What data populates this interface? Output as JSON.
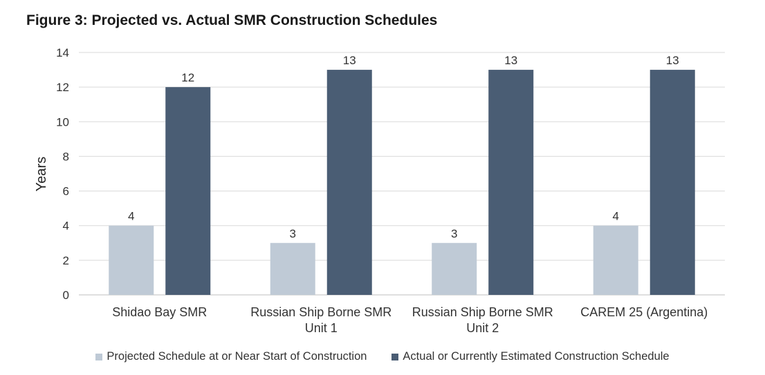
{
  "title": "Figure 3: Projected vs. Actual SMR Construction Schedules",
  "chart_data": {
    "type": "bar",
    "title": "Figure 3: Projected vs. Actual SMR Construction Schedules",
    "categories": [
      [
        "Shidao Bay SMR"
      ],
      [
        "Russian Ship Borne SMR",
        "Unit 1"
      ],
      [
        "Russian Ship Borne SMR",
        "Unit 2"
      ],
      [
        "CAREM 25 (Argentina)"
      ]
    ],
    "series": [
      {
        "name": "Projected Schedule at or Near Start of Construction",
        "values": [
          4,
          3,
          3,
          4
        ],
        "color": "#bfcad6"
      },
      {
        "name": "Actual or Currently Estimated Construction Schedule",
        "values": [
          12,
          13,
          13,
          13
        ],
        "color": "#4a5d74"
      }
    ],
    "ylabel": "Years",
    "xlabel": "",
    "ylim": [
      0,
      14
    ],
    "yticks": [
      0,
      2,
      4,
      6,
      8,
      10,
      12,
      14
    ],
    "grid": true,
    "data_labels": true,
    "legend_position": "bottom"
  }
}
